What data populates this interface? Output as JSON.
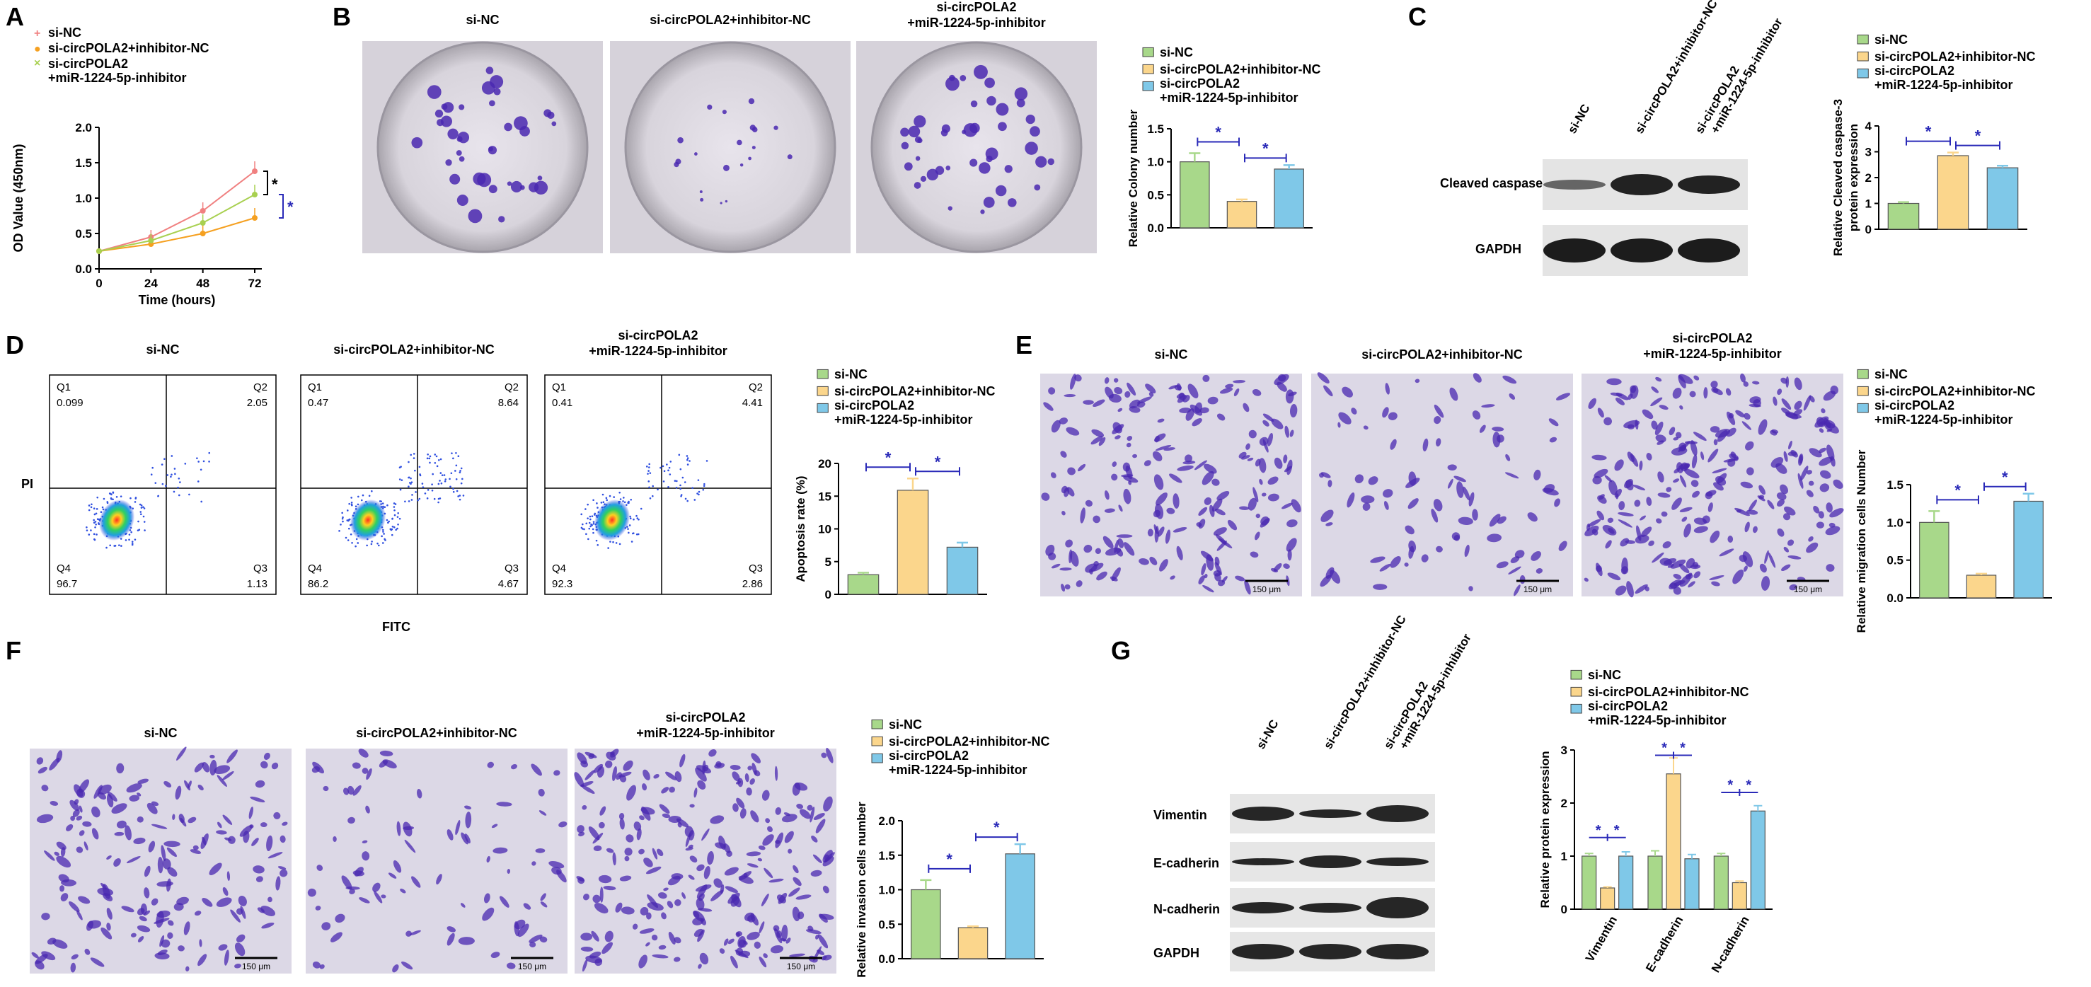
{
  "colors": {
    "green": "#a8d88a",
    "yellow": "#fbd68c",
    "blue": "#7fc8e8",
    "axis": "#000000",
    "sig": "#2a2ab8",
    "stain": "#4a28b0",
    "blot": "#111111"
  },
  "groups": [
    "si-NC",
    "si-circPOLA2+inhibitor-NC",
    "si-circPOLA2\n+miR-1224-5p-inhibitor"
  ],
  "panels": {
    "A": {
      "letter": "A",
      "legend": [
        "si-NC",
        "si-circPOLA2+inhibitor-NC",
        "si-circPOLA2",
        "+miR-1224-5p-inhibitor"
      ],
      "chart_data": {
        "type": "line",
        "x": [
          0,
          24,
          48,
          72
        ],
        "xlabel": "Time (hours)",
        "ylabel": "OD Value (450nm)",
        "ylim": [
          0,
          2.0
        ],
        "yticks": [
          "0.0",
          "0.5",
          "1.0",
          "1.5",
          "2.0"
        ],
        "xticks": [
          "0",
          "24",
          "48",
          "72"
        ],
        "series": [
          {
            "name": "si-NC",
            "values": [
              0.25,
              0.45,
              0.82,
              1.38
            ]
          },
          {
            "name": "si-circPOLA2+inhibitor-NC",
            "values": [
              0.25,
              0.35,
              0.5,
              0.72
            ]
          },
          {
            "name": "si-circPOLA2 +miR-1224-5p-inhibitor",
            "values": [
              0.25,
              0.4,
              0.65,
              1.05
            ]
          }
        ],
        "sig": [
          "*",
          "*"
        ]
      }
    },
    "B": {
      "letter": "B",
      "image_titles": [
        "si-NC",
        "si-circPOLA2+inhibitor-NC",
        "si-circPOLA2",
        "+miR-1224-5p-inhibitor"
      ],
      "legend": [
        "si-NC",
        "si-circPOLA2+inhibitor-NC",
        "si-circPOLA2",
        "+miR-1224-5p-inhibitor"
      ],
      "chart_data": {
        "type": "bar",
        "values": [
          1.0,
          0.4,
          0.89
        ],
        "errors": [
          0.13,
          0.03,
          0.06
        ],
        "ylabel": "Relative Colony number",
        "ylim": [
          0,
          1.5
        ],
        "yticks": [
          "0.0",
          "0.5",
          "1.0",
          "1.5"
        ],
        "sig": [
          "*",
          "*"
        ]
      }
    },
    "C": {
      "letter": "C",
      "lane_labels": [
        "si-NC",
        "si-circPOLA2+inhibitor-NC",
        "si-circPOLA2",
        "+miR-1224-5p-inhibitor"
      ],
      "bands": [
        "Cleaved caspase-3",
        "GAPDH"
      ],
      "legend": [
        "si-NC",
        "si-circPOLA2+inhibitor-NC",
        "si-circPOLA2",
        "+miR-1224-5p-inhibitor"
      ],
      "chart_data": {
        "type": "bar",
        "values": [
          1.0,
          2.85,
          2.38
        ],
        "errors": [
          0.05,
          0.12,
          0.08
        ],
        "ylabel": "Relative Cleaved caspase-3",
        "ylabel2": "protein expression",
        "ylim": [
          0,
          4
        ],
        "yticks": [
          "0",
          "1",
          "2",
          "3",
          "4"
        ],
        "sig": [
          "*",
          "*"
        ]
      }
    },
    "D": {
      "letter": "D",
      "plot_titles": [
        "si-NC",
        "si-circPOLA2+inhibitor-NC",
        "si-circPOLA2",
        "+miR-1224-5p-inhibitor"
      ],
      "quadrants": [
        {
          "q1": "0.099",
          "q2": "2.05",
          "q3": "1.13",
          "q4": "96.7"
        },
        {
          "q1": "0.47",
          "q2": "8.64",
          "q3": "4.67",
          "q4": "86.2"
        },
        {
          "q1": "0.41",
          "q2": "4.41",
          "q3": "2.86",
          "q4": "92.3"
        }
      ],
      "quad_names": [
        "Q1",
        "Q2",
        "Q3",
        "Q4"
      ],
      "xlabel": "FITC",
      "ylabel": "PI",
      "legend": [
        "si-NC",
        "si-circPOLA2+inhibitor-NC",
        "si-circPOLA2",
        "+miR-1224-5p-inhibitor"
      ],
      "chart_data": {
        "type": "bar",
        "values": [
          3.0,
          15.9,
          7.2
        ],
        "errors": [
          0.3,
          1.8,
          0.7
        ],
        "ylabel": "Apoptosis rate (%)",
        "ylim": [
          0,
          20
        ],
        "yticks": [
          "0",
          "5",
          "10",
          "15",
          "20"
        ],
        "sig": [
          "*",
          "*"
        ]
      }
    },
    "E": {
      "letter": "E",
      "image_titles": [
        "si-NC",
        "si-circPOLA2+inhibitor-NC",
        "si-circPOLA2",
        "+miR-1224-5p-inhibitor"
      ],
      "scale": "150 μm",
      "legend": [
        "si-NC",
        "si-circPOLA2+inhibitor-NC",
        "si-circPOLA2",
        "+miR-1224-5p-inhibitor"
      ],
      "chart_data": {
        "type": "bar",
        "values": [
          1.0,
          0.3,
          1.28
        ],
        "errors": [
          0.15,
          0.02,
          0.1
        ],
        "ylabel": "Relative migration cells Number",
        "ylim": [
          0,
          1.5
        ],
        "yticks": [
          "0.0",
          "0.5",
          "1.0",
          "1.5"
        ],
        "sig": [
          "*",
          "*"
        ]
      }
    },
    "F": {
      "letter": "F",
      "image_titles": [
        "si-NC",
        "si-circPOLA2+inhibitor-NC",
        "si-circPOLA2",
        "+miR-1224-5p-inhibitor"
      ],
      "scale": "150 μm",
      "legend": [
        "si-NC",
        "si-circPOLA2+inhibitor-NC",
        "si-circPOLA2",
        "+miR-1224-5p-inhibitor"
      ],
      "chart_data": {
        "type": "bar",
        "values": [
          1.0,
          0.45,
          1.52
        ],
        "errors": [
          0.14,
          0.02,
          0.14
        ],
        "ylabel": "Relative invasion cells number",
        "ylim": [
          0,
          2.0
        ],
        "yticks": [
          "0.0",
          "0.5",
          "1.0",
          "1.5",
          "2.0"
        ],
        "sig": [
          "*",
          "*"
        ]
      }
    },
    "G": {
      "letter": "G",
      "lane_labels": [
        "si-NC",
        "si-circPOLA2+inhibitor-NC",
        "si-circPOLA2",
        "+miR-1224-5p-inhibitor"
      ],
      "bands": [
        "Vimentin",
        "E-cadherin",
        "N-cadherin",
        "GAPDH"
      ],
      "legend": [
        "si-NC",
        "si-circPOLA2+inhibitor-NC",
        "si-circPOLA2",
        "+miR-1224-5p-inhibitor"
      ],
      "chart_data": {
        "type": "bar",
        "categories": [
          "Vimentin",
          "E-cadherin",
          "N-cadherin"
        ],
        "series": [
          {
            "name": "si-NC",
            "values": [
              1.0,
              1.0,
              1.0
            ]
          },
          {
            "name": "si-circPOLA2+inhibitor-NC",
            "values": [
              0.4,
              2.55,
              0.5
            ]
          },
          {
            "name": "si-circPOLA2 +miR-1224-5p-inhibitor",
            "values": [
              1.0,
              0.95,
              1.85
            ]
          }
        ],
        "errors": [
          [
            0.05,
            0.1,
            0.05
          ],
          [
            0.02,
            0.3,
            0.03
          ],
          [
            0.08,
            0.08,
            0.1
          ]
        ],
        "ylabel": "Relative protein expression",
        "ylim": [
          0,
          3
        ],
        "yticks": [
          "0",
          "1",
          "2",
          "3"
        ],
        "sig": "*"
      }
    }
  }
}
